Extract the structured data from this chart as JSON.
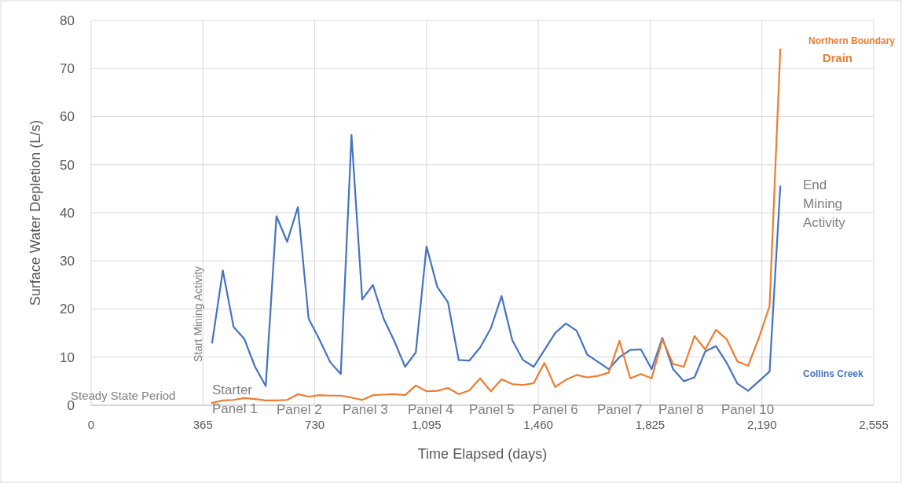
{
  "chart_data": {
    "type": "line",
    "xlabel": "Time Elapsed (days)",
    "ylabel": "Surface Water Depletion (L/s)",
    "x": [
      395,
      430,
      465,
      500,
      535,
      570,
      605,
      640,
      675,
      710,
      745,
      780,
      815,
      850,
      885,
      920,
      955,
      990,
      1025,
      1060,
      1095,
      1130,
      1165,
      1200,
      1235,
      1270,
      1305,
      1340,
      1375,
      1410,
      1445,
      1480,
      1515,
      1550,
      1585,
      1620,
      1655,
      1690,
      1725,
      1760,
      1795,
      1830,
      1865,
      1900,
      1935,
      1970,
      2005,
      2040,
      2075,
      2110,
      2145,
      2180,
      2215,
      2250
    ],
    "series": [
      {
        "name": "Collins Creek",
        "color": "#4472c4",
        "values": [
          13,
          28,
          16.3,
          13.8,
          8,
          4,
          39.3,
          34,
          41.2,
          18,
          13.7,
          9,
          6.5,
          56.2,
          22,
          25,
          18,
          13.3,
          8,
          11,
          33,
          24.6,
          21.4,
          9.4,
          9.3,
          12,
          16,
          22.7,
          13.5,
          9.4,
          8,
          11.5,
          15,
          17,
          15.5,
          10.5,
          9,
          7.5,
          10,
          11.5,
          11.6,
          7.5,
          14,
          7.5,
          5,
          5.8,
          11.2,
          12.3,
          8.8,
          4.5,
          3,
          5,
          7,
          45.5
        ]
      },
      {
        "name": "Northern Boundary Drain",
        "color": "#ed7d31",
        "values": [
          0.5,
          1,
          1.1,
          1.5,
          1.3,
          1,
          1,
          1.1,
          2.3,
          1.8,
          2.1,
          2,
          2,
          1.6,
          1.1,
          2.1,
          2.2,
          2.3,
          2.1,
          4.1,
          2.9,
          3,
          3.6,
          2.3,
          3.1,
          5.6,
          2.9,
          5.4,
          4.4,
          4.2,
          4.6,
          8.8,
          3.8,
          5.3,
          6.3,
          5.8,
          6.1,
          6.8,
          13.4,
          5.6,
          6.5,
          5.6,
          13.7,
          8.6,
          8,
          14.4,
          11.6,
          15.7,
          13.7,
          9.1,
          8.2,
          14,
          20.6,
          74
        ]
      }
    ],
    "xlim": [
      0,
      2555
    ],
    "xticks": [
      0,
      365,
      730,
      {
        "value": 1095,
        "label": "1,095"
      },
      {
        "value": 1460,
        "label": "1,460"
      },
      {
        "value": 1825,
        "label": "1,825"
      },
      {
        "value": 2190,
        "label": "2,190"
      },
      {
        "value": 2555,
        "label": "2,555"
      }
    ],
    "ylim": [
      0,
      80
    ],
    "yticks": [
      0,
      10,
      20,
      30,
      40,
      50,
      60,
      70,
      80
    ],
    "grid": true,
    "legend": false,
    "marker": "none",
    "line_style": "solid",
    "annotations": [
      "Steady State Period",
      "Start Mining Activity",
      "Starter Panel 1",
      "Panel 2",
      "Panel 3",
      "Panel 4",
      "Panel 5",
      "Panel 6",
      "Panel 7",
      "Panel 8",
      "Panel 10",
      "End Mining Activity"
    ]
  }
}
